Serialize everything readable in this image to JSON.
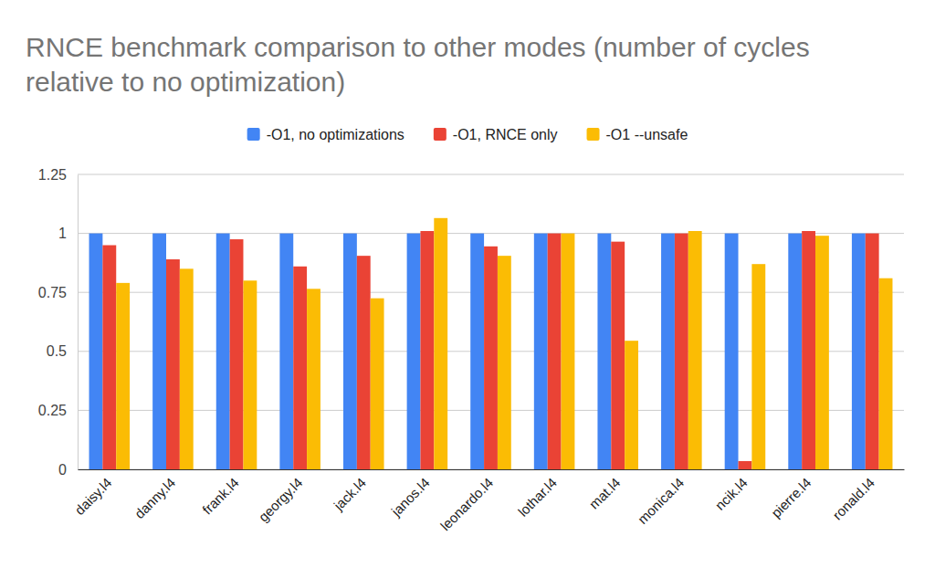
{
  "chart_data": {
    "type": "bar",
    "title": "RNCE benchmark comparison to other modes (number of cycles relative to no optimization)",
    "categories": [
      "daisy.l4",
      "danny.l4",
      "frank.l4",
      "georgy.l4",
      "jack.l4",
      "janos.l4",
      "leonardo.l4",
      "lothar.l4",
      "mat.l4",
      "monica.l4",
      "ncik.l4",
      "pierre.l4",
      "ronald.l4"
    ],
    "series": [
      {
        "name": "-O1, no optimizations",
        "color": "#4285f4",
        "values": [
          1,
          1,
          1,
          1,
          1,
          1,
          1,
          1,
          1,
          1,
          1,
          1,
          1
        ]
      },
      {
        "name": "-O1, RNCE only",
        "color": "#ea4335",
        "values": [
          0.95,
          0.89,
          0.975,
          0.86,
          0.905,
          1.01,
          0.945,
          1.0,
          0.965,
          1.0,
          0.035,
          1.01,
          1.0
        ]
      },
      {
        "name": "-O1 --unsafe",
        "color": "#fbbc04",
        "values": [
          0.79,
          0.85,
          0.8,
          0.765,
          0.725,
          1.065,
          0.905,
          1.0,
          0.545,
          1.01,
          0.87,
          0.99,
          0.81
        ]
      }
    ],
    "ylim": [
      0,
      1.25
    ],
    "yticks": [
      0,
      0.25,
      0.5,
      0.75,
      1,
      1.25
    ],
    "grid": true,
    "legend": "top"
  }
}
